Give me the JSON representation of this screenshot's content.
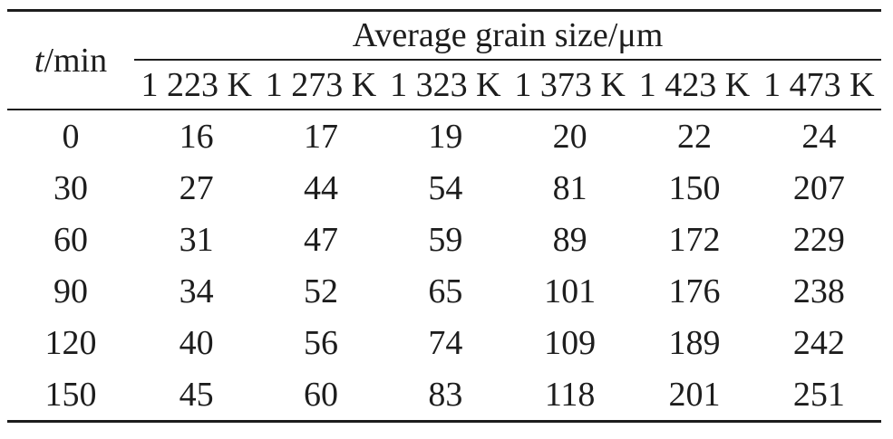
{
  "table": {
    "row_axis": {
      "symbol": "t",
      "unit": "/min"
    },
    "col_group_title": "Average grain size/μm",
    "columns": [
      "1 223 K",
      "1 273 K",
      "1 323 K",
      "1 373 K",
      "1 423 K",
      "1 473 K"
    ],
    "rows": [
      {
        "t": "0",
        "values": [
          "16",
          "17",
          "19",
          "20",
          "22",
          "24"
        ]
      },
      {
        "t": "30",
        "values": [
          "27",
          "44",
          "54",
          "81",
          "150",
          "207"
        ]
      },
      {
        "t": "60",
        "values": [
          "31",
          "47",
          "59",
          "89",
          "172",
          "229"
        ]
      },
      {
        "t": "90",
        "values": [
          "34",
          "52",
          "65",
          "101",
          "176",
          "238"
        ]
      },
      {
        "t": "120",
        "values": [
          "40",
          "56",
          "74",
          "109",
          "189",
          "242"
        ]
      },
      {
        "t": "150",
        "values": [
          "45",
          "60",
          "83",
          "118",
          "201",
          "251"
        ]
      }
    ]
  },
  "colors": {
    "text": "#1d1d1d",
    "rule": "#1d1d1d",
    "background": "#ffffff"
  }
}
